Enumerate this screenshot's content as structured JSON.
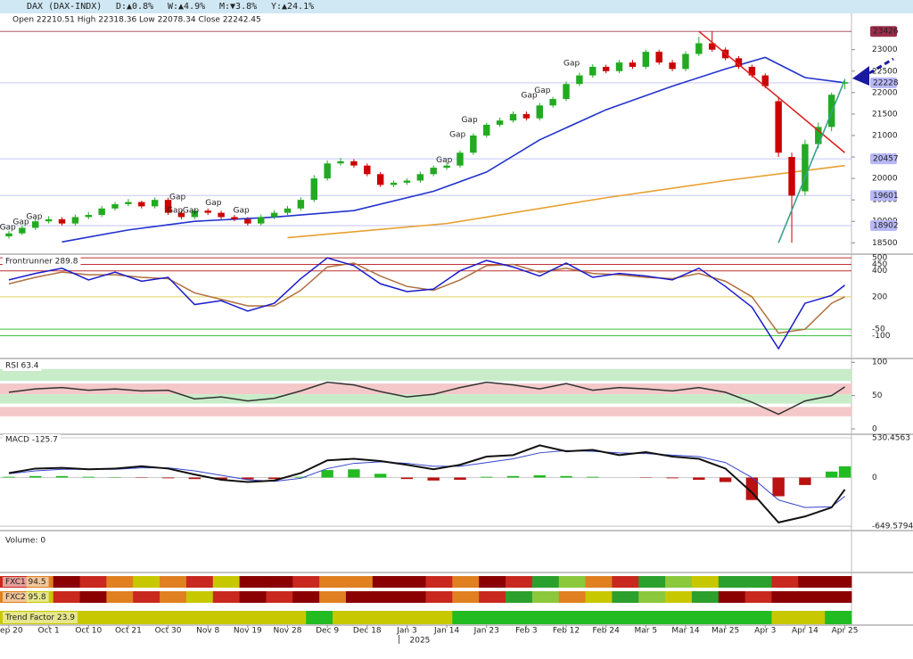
{
  "header": {
    "symbol": "DAX (DAX-INDX)",
    "changes": [
      "D:▲0.8%",
      "W:▲4.9%",
      "M:▼3.8%",
      "Y:▲24.1%"
    ]
  },
  "x_axis": {
    "xlim": [
      -0.67,
      63.5
    ],
    "xticks": [
      {
        "value": 0,
        "label": "Sep 20"
      },
      {
        "value": 3,
        "label": "Oct 1"
      },
      {
        "value": 6,
        "label": "Oct 10"
      },
      {
        "value": 9,
        "label": "Oct 21"
      },
      {
        "value": 12,
        "label": "Oct 30"
      },
      {
        "value": 15,
        "label": "Nov 8"
      },
      {
        "value": 18,
        "label": "Nov 19"
      },
      {
        "value": 21,
        "label": "Nov 28"
      },
      {
        "value": 24,
        "label": "Dec 9"
      },
      {
        "value": 27,
        "label": "Dec 18"
      },
      {
        "value": 30,
        "label": "Jan 3"
      },
      {
        "value": 33,
        "label": "Jan 14"
      },
      {
        "value": 36,
        "label": "Jan 23"
      },
      {
        "value": 39,
        "label": "Feb 3"
      },
      {
        "value": 42,
        "label": "Feb 12"
      },
      {
        "value": 45,
        "label": "Feb 24"
      },
      {
        "value": 48,
        "label": "Mar 5"
      },
      {
        "value": 51,
        "label": "Mar 14"
      },
      {
        "value": 54,
        "label": "Mar 25"
      },
      {
        "value": 57,
        "label": "Apr 3"
      },
      {
        "value": 60,
        "label": "Apr 14"
      },
      {
        "value": 63,
        "label": "Apr 25"
      }
    ],
    "year_marker": {
      "value": 29.4,
      "label": "2025"
    }
  },
  "chart_data": [
    {
      "type": "candlestick",
      "subtitle": "Open 22210.51 High 22318.36 Low 22078.34 Close 22242.45",
      "up_color": "#22aa22",
      "down_color": "#cc0000",
      "open": [
        18650,
        18720,
        18850,
        19000,
        19050,
        18950,
        19100,
        19150,
        19300,
        19400,
        19450,
        19350,
        19500,
        19200,
        19100,
        19250,
        19200,
        19100,
        19050,
        18950,
        19100,
        19200,
        19300,
        19500,
        20000,
        20350,
        20400,
        20300,
        20100,
        19850,
        19900,
        19950,
        20100,
        20250,
        20300,
        20600,
        21000,
        21250,
        21350,
        21500,
        21400,
        21700,
        21850,
        22200,
        22400,
        22600,
        22500,
        22700,
        22600,
        22950,
        22700,
        22550,
        22900,
        23150,
        23000,
        22800,
        22600,
        22400,
        21800,
        20500,
        19700,
        20800,
        21200,
        22210.51
      ],
      "high": [
        18780,
        18900,
        19060,
        19120,
        19100,
        19160,
        19220,
        19360,
        19450,
        19520,
        19480,
        19560,
        19550,
        19260,
        19300,
        19300,
        19250,
        19150,
        19100,
        19160,
        19260,
        19360,
        19560,
        20080,
        20420,
        20480,
        20450,
        20350,
        20150,
        19950,
        20000,
        20160,
        20300,
        20380,
        20650,
        21050,
        21300,
        21420,
        21560,
        21560,
        21760,
        21900,
        22260,
        22460,
        22660,
        22650,
        22760,
        22760,
        23000,
        23000,
        22760,
        22960,
        23300,
        23426,
        23050,
        22850,
        22650,
        22450,
        21900,
        20600,
        20900,
        21300,
        22000,
        22318.36
      ],
      "low": [
        18600,
        18680,
        18800,
        18950,
        18900,
        18900,
        19050,
        19100,
        19250,
        19350,
        19300,
        19300,
        19150,
        19050,
        19050,
        19150,
        19050,
        19000,
        18900,
        18900,
        19050,
        19150,
        19250,
        19450,
        19950,
        20300,
        20250,
        20050,
        19800,
        19800,
        19850,
        19900,
        20050,
        20200,
        20250,
        20550,
        20950,
        21200,
        21300,
        21350,
        21350,
        21650,
        21800,
        22150,
        22350,
        22450,
        22450,
        22550,
        22550,
        22650,
        22500,
        22500,
        22850,
        22950,
        22750,
        22550,
        22350,
        22100,
        20500,
        18500,
        19600,
        20700,
        21100,
        22078.34
      ],
      "close": [
        18720,
        18850,
        19000,
        19050,
        18950,
        19100,
        19150,
        19300,
        19400,
        19450,
        19350,
        19500,
        19200,
        19100,
        19250,
        19200,
        19100,
        19050,
        18950,
        19100,
        19200,
        19300,
        19500,
        20000,
        20350,
        20400,
        20300,
        20100,
        19850,
        19900,
        19950,
        20100,
        20250,
        20300,
        20600,
        21000,
        21250,
        21350,
        21500,
        21400,
        21700,
        21850,
        22200,
        22400,
        22600,
        22500,
        22700,
        22600,
        22950,
        22700,
        22550,
        22900,
        23150,
        23000,
        22800,
        22600,
        22400,
        22150,
        20600,
        19600,
        20800,
        21200,
        21950,
        22242.45
      ],
      "ylim": [
        18340,
        23700
      ],
      "yticks": [
        18500,
        19000,
        19500,
        20000,
        20500,
        21000,
        21500,
        22000,
        22500,
        23000
      ],
      "lines": [
        {
          "color": "#2233cc",
          "x": [
            4,
            9,
            14,
            20,
            26,
            32,
            36,
            40,
            45,
            50,
            54,
            57,
            60,
            63
          ],
          "values": [
            18520,
            18800,
            19000,
            19100,
            19250,
            19700,
            20150,
            20900,
            21600,
            22150,
            22550,
            22820,
            22350,
            22228
          ]
        },
        {
          "color": "#e8a030",
          "x": [
            21,
            33,
            45,
            54,
            63
          ],
          "values": [
            18620,
            18950,
            19550,
            19950,
            20300
          ]
        }
      ],
      "trendlines": [
        {
          "color": "#dd2222",
          "x": [
            52,
            63
          ],
          "values": [
            23426,
            20600
          ]
        },
        {
          "color": "#3aa08a",
          "x": [
            58,
            63
          ],
          "values": [
            18500,
            22300
          ]
        }
      ],
      "levels": [
        {
          "value": 23426,
          "color": "#9b2d4a",
          "text_color": "#ffffff"
        },
        {
          "value": 22228,
          "color": "#b8b8f8",
          "text_color": "#222222"
        },
        {
          "value": 20457,
          "color": "#b8b8f8",
          "text_color": "#222222"
        },
        {
          "value": 19601,
          "color": "#b8b8f8",
          "text_color": "#222222"
        },
        {
          "value": 18902,
          "color": "#b8b8f8",
          "text_color": "#222222"
        }
      ],
      "annotations": [
        {
          "text": "Gap",
          "x": -0.7,
          "y": 18860,
          "color": "#222222"
        },
        {
          "text": "Gap",
          "x": 0.3,
          "y": 18980,
          "color": "#222222"
        },
        {
          "text": "Gap",
          "x": 1.3,
          "y": 19110,
          "color": "#222222"
        },
        {
          "text": "Gap",
          "x": 12.1,
          "y": 19570,
          "color": "#cc2222"
        },
        {
          "text": "Gap",
          "x": 11.9,
          "y": 19250,
          "color": "#cc2222"
        },
        {
          "text": "Gap",
          "x": 13.1,
          "y": 19250,
          "color": "#cc2222"
        },
        {
          "text": "Gap",
          "x": 14.8,
          "y": 19430,
          "color": "#cc2222"
        },
        {
          "text": "Gap",
          "x": 16.9,
          "y": 19250,
          "color": "#222222"
        },
        {
          "text": "Gap",
          "x": 32.2,
          "y": 20430,
          "color": "#222222"
        },
        {
          "text": "Gap",
          "x": 33.2,
          "y": 21020,
          "color": "#222222"
        },
        {
          "text": "Gap",
          "x": 34.1,
          "y": 21360,
          "color": "#222222"
        },
        {
          "text": "Gap",
          "x": 38.6,
          "y": 21930,
          "color": "#222222"
        },
        {
          "text": "Gap",
          "x": 39.6,
          "y": 22045,
          "color": "#222222"
        },
        {
          "text": "Gap",
          "x": 41.8,
          "y": 22680,
          "color": "#222222"
        }
      ]
    },
    {
      "type": "line",
      "title": "Frontrunner 289.8",
      "ylim": [
        -255,
        515
      ],
      "yticks": [
        500,
        450,
        400,
        200,
        -50,
        -100
      ],
      "ytick_colors": [
        "#c03030",
        "#c03030",
        "#c03030",
        "#e0d060",
        "#40c040",
        "#40c040"
      ],
      "x": [
        0,
        2,
        4,
        6,
        8,
        10,
        12,
        14,
        16,
        18,
        20,
        22,
        24,
        26,
        28,
        30,
        32,
        34,
        36,
        38,
        40,
        42,
        44,
        46,
        48,
        50,
        52,
        54,
        56,
        58,
        60,
        62,
        63
      ],
      "series": [
        {
          "color": "#b07040",
          "values": [
            300,
            350,
            390,
            370,
            370,
            350,
            340,
            230,
            180,
            130,
            130,
            250,
            430,
            460,
            360,
            280,
            250,
            330,
            440,
            450,
            390,
            420,
            380,
            370,
            350,
            340,
            380,
            320,
            200,
            -80,
            -50,
            150,
            200
          ]
        },
        {
          "color": "#1a1acc",
          "values": [
            330,
            380,
            420,
            330,
            390,
            320,
            350,
            140,
            170,
            90,
            150,
            340,
            500,
            440,
            300,
            240,
            260,
            400,
            480,
            430,
            360,
            460,
            350,
            380,
            360,
            330,
            420,
            280,
            120,
            -200,
            150,
            210,
            290
          ]
        }
      ]
    },
    {
      "type": "line",
      "title": "RSI 63.4",
      "ylim": [
        -4,
        103
      ],
      "yticks": [
        0,
        50,
        100
      ],
      "bands": [
        {
          "from": 72,
          "to": 90,
          "color": "#c8ecc8"
        },
        {
          "from": 52,
          "to": 68,
          "color": "#f4c8c8"
        },
        {
          "from": 38,
          "to": 52,
          "color": "#c8ecc8"
        },
        {
          "from": 19,
          "to": 33,
          "color": "#f4c8c8"
        }
      ],
      "x": [
        0,
        2,
        4,
        6,
        8,
        10,
        12,
        14,
        16,
        18,
        20,
        22,
        24,
        26,
        28,
        30,
        32,
        34,
        36,
        38,
        40,
        42,
        44,
        46,
        48,
        50,
        52,
        54,
        56,
        58,
        60,
        62,
        63
      ],
      "series": [
        {
          "color": "#333333",
          "values": [
            55,
            60,
            62,
            58,
            60,
            57,
            58,
            45,
            48,
            42,
            46,
            57,
            70,
            66,
            56,
            48,
            52,
            62,
            70,
            66,
            60,
            68,
            58,
            62,
            60,
            57,
            62,
            55,
            40,
            22,
            42,
            50,
            63
          ]
        }
      ]
    },
    {
      "type": "macd",
      "title": "MACD -125.7",
      "ylim": [
        -685,
        578
      ],
      "yticks": [
        530.4563,
        0,
        -649.5794
      ],
      "x": [
        0,
        2,
        4,
        6,
        8,
        10,
        12,
        14,
        16,
        18,
        20,
        22,
        24,
        26,
        28,
        30,
        32,
        34,
        36,
        38,
        40,
        42,
        44,
        46,
        48,
        50,
        52,
        54,
        56,
        58,
        60,
        62,
        63
      ],
      "up_color": "#22bb22",
      "down_color": "#bb1111",
      "histogram": [
        10,
        20,
        20,
        10,
        5,
        -5,
        -10,
        -20,
        -30,
        -25,
        -20,
        10,
        100,
        110,
        50,
        -20,
        -40,
        -30,
        10,
        20,
        30,
        20,
        10,
        0,
        -5,
        -10,
        -30,
        -60,
        -300,
        -250,
        -100,
        80,
        150
      ],
      "series": [
        {
          "color": "#3344cc",
          "values": [
            50,
            90,
            110,
            110,
            110,
            130,
            130,
            90,
            30,
            -30,
            -50,
            -10,
            120,
            190,
            210,
            190,
            150,
            150,
            200,
            250,
            330,
            360,
            350,
            330,
            320,
            300,
            280,
            200,
            0,
            -300,
            -400,
            -390,
            -250
          ]
        },
        {
          "color": "#111111",
          "values": [
            60,
            120,
            130,
            110,
            120,
            150,
            120,
            40,
            -30,
            -60,
            -40,
            60,
            230,
            250,
            220,
            170,
            110,
            170,
            280,
            300,
            430,
            350,
            370,
            300,
            340,
            280,
            250,
            120,
            -200,
            -600,
            -520,
            -400,
            -160
          ]
        }
      ]
    },
    {
      "type": "volume",
      "title": "Volume: 0"
    },
    {
      "type": "heatmap",
      "title": "FXC1 94.5",
      "palette": {
        "r": "#c8281e",
        "d": "#8b0000",
        "o": "#e08020",
        "y": "#c8c800",
        "g": "#2ca02c",
        "l": "#8cc83c"
      },
      "cells": "rodroyoryddrooddrodrglorglyggrdd"
    },
    {
      "type": "heatmap",
      "title": "FXC2 95.8",
      "palette": {
        "r": "#c8281e",
        "d": "#8b0000",
        "o": "#e08020",
        "y": "#c8c800",
        "g": "#2ca02c",
        "l": "#8cc83c"
      },
      "cells": "oyrdoroyrdrdodddrorgloyglygdrddd"
    },
    {
      "type": "heatmap",
      "title": "Trend Factor 23.9",
      "palette": {
        "y": "#c8c800",
        "g": "#22bb22"
      },
      "cells": "yyyyyyyyyyyyyyyyyyyyyyyggyyyyyyyyyggggggggggggggggggggggggyyyygg"
    }
  ]
}
